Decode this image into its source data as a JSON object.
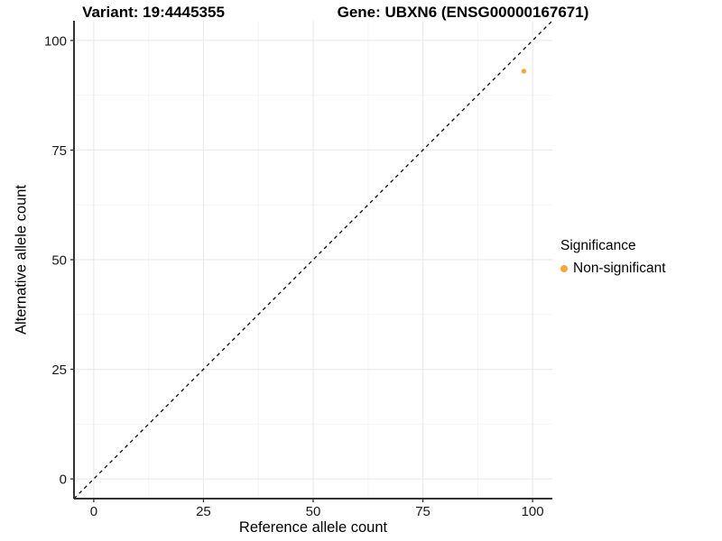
{
  "chart_data": {
    "type": "scatter",
    "titles": {
      "variant": "Variant: 19:4445355",
      "gene": "Gene: UBXN6 (ENSG00000167671)"
    },
    "xlabel": "Reference allele count",
    "ylabel": "Alternative allele count",
    "xlim": [
      -4.5,
      104.5
    ],
    "ylim": [
      -4.5,
      104.5
    ],
    "xticks": [
      0,
      25,
      50,
      75,
      100
    ],
    "yticks": [
      0,
      25,
      50,
      75,
      100
    ],
    "minor_ticks_x": [
      12.5,
      37.5,
      62.5,
      87.5
    ],
    "minor_ticks_y": [
      12.5,
      37.5,
      62.5,
      87.5
    ],
    "grid": "on",
    "identity_line": {
      "style": "dashed",
      "color": "#000000",
      "from": -4.5,
      "to": 104.5
    },
    "series": [
      {
        "name": "Non-significant",
        "color": "#FBA43B",
        "points": [
          {
            "x": 98,
            "y": 93
          }
        ]
      }
    ],
    "legend": {
      "title": "Significance",
      "position": "right",
      "items": [
        {
          "label": "Non-significant",
          "color": "#FBA43B"
        }
      ]
    },
    "colors": {
      "grid_major": "#EBEBEB",
      "grid_minor": "#F5F5F5",
      "axis_line": "#333333",
      "tick_mark": "#333333",
      "tick_label": "#1A1A1A",
      "background": "#FFFFFF"
    }
  }
}
